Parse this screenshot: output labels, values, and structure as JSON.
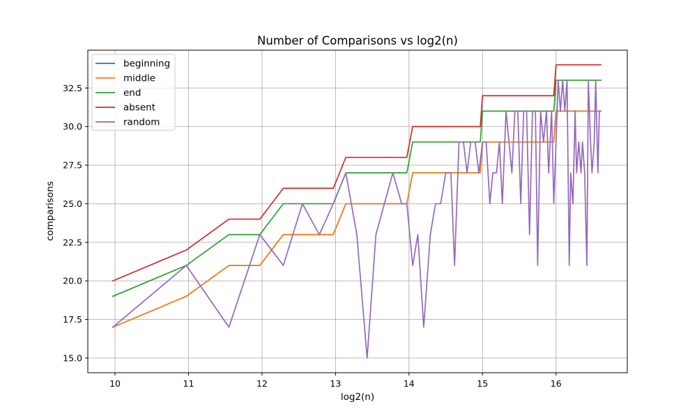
{
  "chart_data": {
    "type": "line",
    "title": "Number of Comparisons vs log2(n)",
    "xlabel": "log2(n)",
    "ylabel": "comparisons",
    "xlim": [
      9.63,
      16.97
    ],
    "ylim": [
      14.05,
      34.95
    ],
    "xticks": [
      10,
      11,
      12,
      13,
      14,
      15,
      16
    ],
    "yticks": [
      15.0,
      17.5,
      20.0,
      22.5,
      25.0,
      27.5,
      30.0,
      32.5
    ],
    "ytick_labels": [
      "15.0",
      "17.5",
      "20.0",
      "22.5",
      "25.0",
      "27.5",
      "30.0",
      "32.5"
    ],
    "grid": true,
    "legend_position": "upper-left",
    "series": [
      {
        "name": "beginning",
        "color": "#1f77b4",
        "x": [
          9.97,
          10.97,
          11.55,
          11.97,
          12.29,
          12.97,
          13.14,
          13.97,
          14.05,
          14.97,
          15.0,
          15.97,
          16.0,
          16.61
        ],
        "y": [
          17,
          19,
          21,
          21,
          23,
          23,
          25,
          25,
          27,
          27,
          29,
          29,
          31,
          31
        ]
      },
      {
        "name": "middle",
        "color": "#ff7f0e",
        "x": [
          9.97,
          10.97,
          11.55,
          11.97,
          12.29,
          12.97,
          13.14,
          13.97,
          14.05,
          14.97,
          15.0,
          15.97,
          16.0,
          16.61
        ],
        "y": [
          17,
          19,
          21,
          21,
          23,
          23,
          25,
          25,
          27,
          27,
          29,
          29,
          31,
          31
        ]
      },
      {
        "name": "end",
        "color": "#2ca02c",
        "x": [
          9.97,
          10.97,
          11.55,
          11.97,
          12.29,
          12.97,
          13.14,
          13.97,
          14.05,
          14.97,
          15.0,
          15.97,
          16.0,
          16.61
        ],
        "y": [
          19,
          21,
          23,
          23,
          25,
          25,
          27,
          27,
          29,
          29,
          31,
          31,
          33,
          33
        ]
      },
      {
        "name": "absent",
        "color": "#d62728",
        "x": [
          9.97,
          10.97,
          11.55,
          11.97,
          12.29,
          12.97,
          13.14,
          13.97,
          14.05,
          14.97,
          15.0,
          15.97,
          16.0,
          16.61
        ],
        "y": [
          20,
          22,
          24,
          24,
          26,
          26,
          28,
          28,
          30,
          30,
          32,
          32,
          34,
          34
        ]
      },
      {
        "name": "random",
        "color": "#9467bd",
        "x": [
          9.97,
          10.97,
          11.55,
          11.97,
          12.29,
          12.55,
          12.78,
          12.97,
          13.14,
          13.29,
          13.43,
          13.55,
          13.78,
          13.9,
          13.97,
          14.05,
          14.12,
          14.2,
          14.29,
          14.36,
          14.43,
          14.5,
          14.57,
          14.62,
          14.68,
          14.74,
          14.79,
          14.84,
          14.9,
          14.95,
          15.0,
          15.05,
          15.1,
          15.14,
          15.19,
          15.23,
          15.27,
          15.32,
          15.36,
          15.4,
          15.44,
          15.48,
          15.52,
          15.56,
          15.6,
          15.64,
          15.68,
          15.72,
          15.75,
          15.79,
          15.83,
          15.87,
          15.9,
          15.94,
          15.97,
          16.0,
          16.03,
          16.06,
          16.09,
          16.12,
          16.15,
          16.18,
          16.2,
          16.23,
          16.26,
          16.28,
          16.31,
          16.34,
          16.36,
          16.39,
          16.42,
          16.44,
          16.47,
          16.49,
          16.52,
          16.54,
          16.57,
          16.59,
          16.61
        ],
        "y": [
          17,
          21,
          17,
          23,
          21,
          25,
          23,
          25,
          27,
          23,
          15,
          23,
          27,
          25,
          25,
          21,
          23,
          17,
          23,
          25,
          25,
          27,
          27,
          21,
          29,
          29,
          27,
          29,
          29,
          27,
          29,
          29,
          25,
          27,
          27,
          29,
          25,
          31,
          29,
          27,
          31,
          31,
          25,
          31,
          31,
          23,
          31,
          31,
          21,
          31,
          29,
          31,
          27,
          31,
          25,
          29,
          33,
          31,
          33,
          31,
          33,
          21,
          27,
          25,
          31,
          27,
          29,
          27,
          29,
          27,
          21,
          33,
          29,
          27,
          29,
          33,
          27,
          31,
          31
        ]
      }
    ]
  }
}
